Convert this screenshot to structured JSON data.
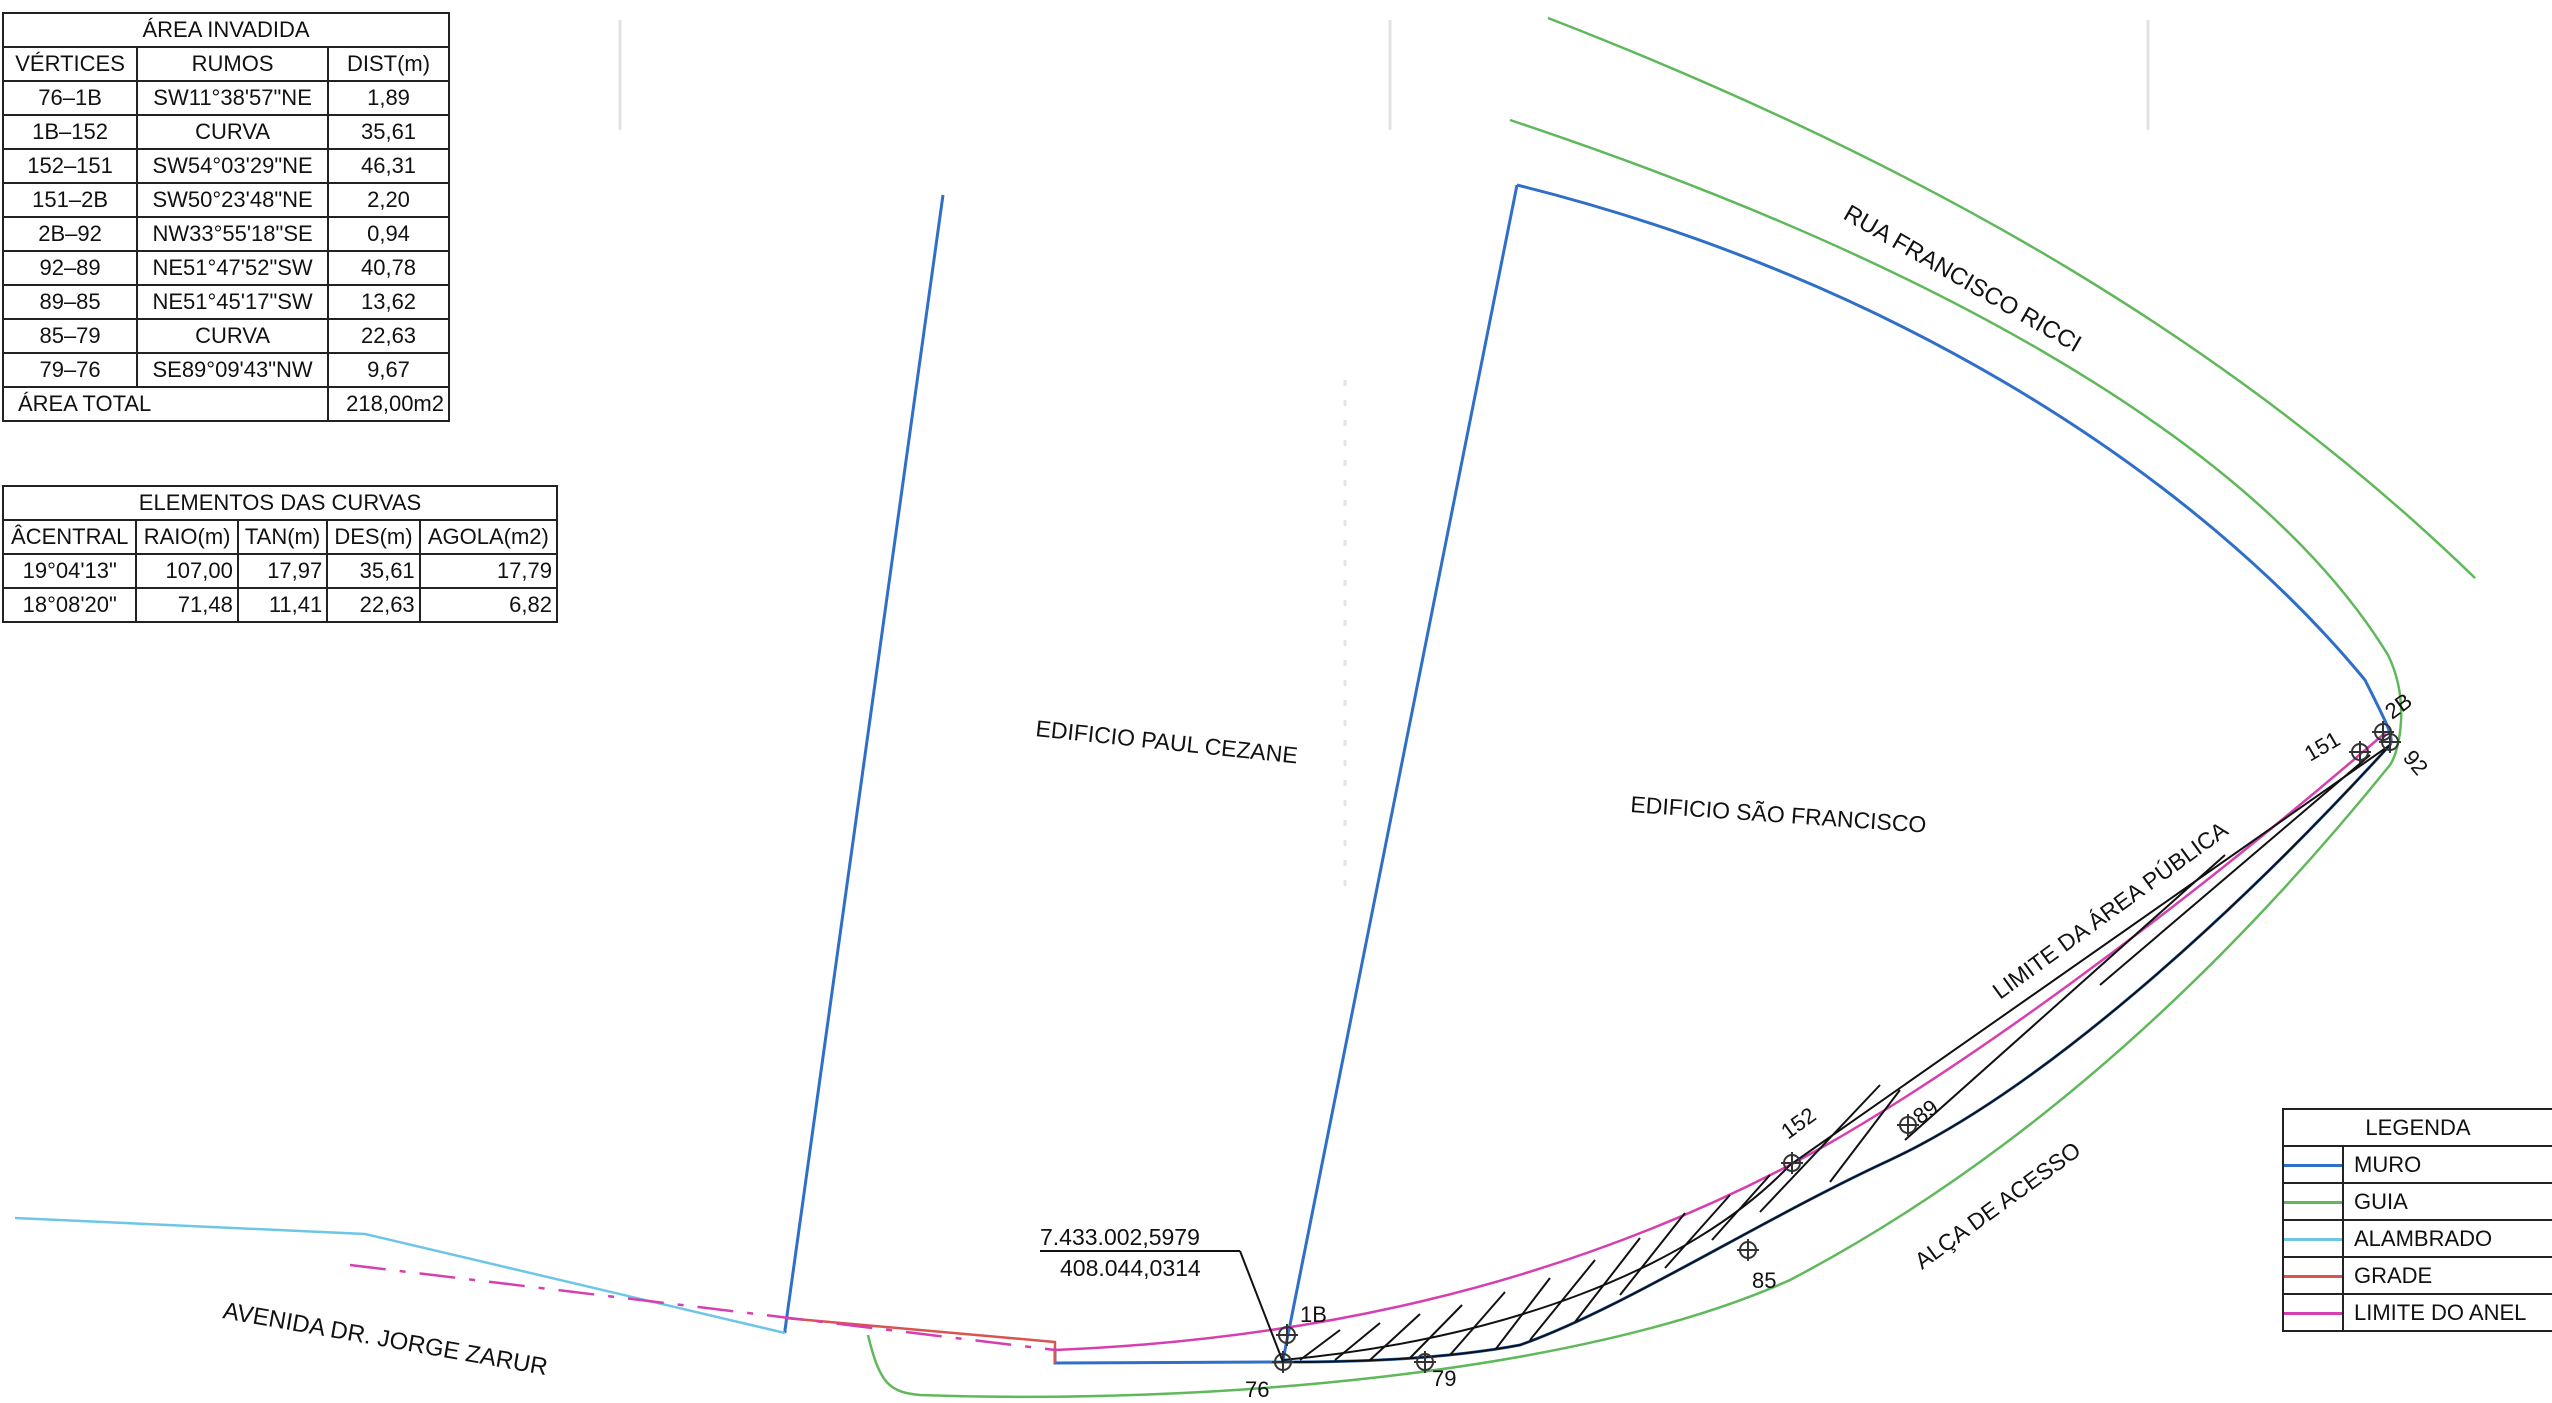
{
  "area_table": {
    "title": "ÁREA INVADIDA",
    "headers": [
      "VÉRTICES",
      "RUMOS",
      "DIST(m)"
    ],
    "rows": [
      [
        "76–1B",
        "SW11°38'57\"NE",
        "1,89"
      ],
      [
        "1B–152",
        "CURVA",
        "35,61"
      ],
      [
        "152–151",
        "SW54°03'29\"NE",
        "46,31"
      ],
      [
        "151–2B",
        "SW50°23'48\"NE",
        "2,20"
      ],
      [
        "2B–92",
        "NW33°55'18\"SE",
        "0,94"
      ],
      [
        "92–89",
        "NE51°47'52\"SW",
        "40,78"
      ],
      [
        "89–85",
        "NE51°45'17\"SW",
        "13,62"
      ],
      [
        "85–79",
        "CURVA",
        "22,63"
      ],
      [
        "79–76",
        "SE89°09'43\"NW",
        "9,67"
      ]
    ],
    "total_label": "ÁREA TOTAL",
    "total_value": "218,00m2"
  },
  "curve_table": {
    "title": "ELEMENTOS DAS CURVAS",
    "headers": [
      "ÂCENTRAL",
      "RAIO(m)",
      "TAN(m)",
      "DES(m)",
      "AGOLA(m2)"
    ],
    "rows": [
      [
        "19°04'13\"",
        "107,00",
        "17,97",
        "35,61",
        "17,79"
      ],
      [
        "18°08'20\"",
        "71,48",
        "11,41",
        "22,63",
        "6,82"
      ]
    ]
  },
  "legend": {
    "title": "LEGENDA",
    "items": [
      {
        "label": "MURO",
        "color": "#2f6fc7"
      },
      {
        "label": "GUIA",
        "color": "#5fb85a"
      },
      {
        "label": "ALAMBRADO",
        "color": "#6ec6e6"
      },
      {
        "label": "GRADE",
        "color": "#d9534f"
      },
      {
        "label": "LIMITE DO ANEL",
        "color": "#d63fb0"
      }
    ]
  },
  "map_labels": {
    "street_ricci": "RUA FRANCISCO RICCI",
    "building_paul": "EDIFICIO PAUL CEZANE",
    "building_sao": "EDIFICIO SÃO FRANCISCO",
    "limite": "LIMITE DA ÁREA PÚBLICA",
    "alca": "ALÇA DE ACESSO",
    "avenida": "AVENIDA DR. JORGE ZARUR",
    "coord_n": "7.433.002,5979",
    "coord_e": "408.044,0314"
  },
  "vertices": [
    "76",
    "1B",
    "79",
    "85",
    "152",
    "89",
    "151",
    "2B",
    "92"
  ],
  "colors": {
    "muro": "#2f6fc7",
    "guia": "#5fb85a",
    "alambrado": "#6ec6e6",
    "grade": "#d9534f",
    "limite": "#d63fb0",
    "hatch": "#111111"
  }
}
